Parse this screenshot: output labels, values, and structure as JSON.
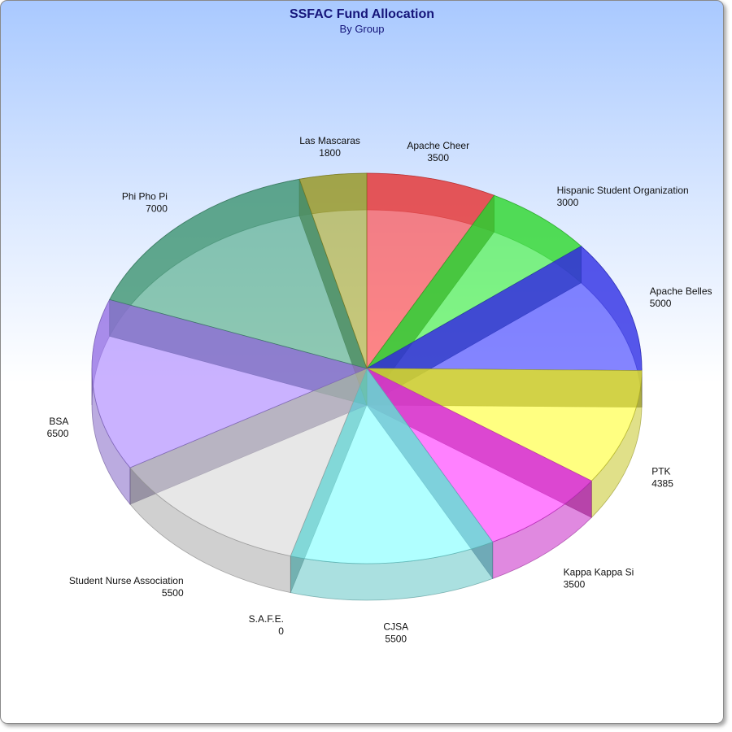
{
  "chart_data": {
    "type": "pie",
    "title": "SSFAC Fund Allocation",
    "subtitle": "By Group",
    "slices": [
      {
        "label": "Apache Cheer",
        "value": 3500,
        "value_text": "3500",
        "color": "#ff3c3c"
      },
      {
        "label": "Hispanic Student Organization",
        "value": 3000,
        "value_text": "3000",
        "color": "#39f039"
      },
      {
        "label": "Apache Belles",
        "value": 5000,
        "value_text": "5000",
        "color": "#3a3aff"
      },
      {
        "label": "PTK",
        "value": 4385,
        "value_text": "4385",
        "color": "#ffff33"
      },
      {
        "label": "Kappa Kappa Si",
        "value": 3500,
        "value_text": "3500",
        "color": "#ff33ff"
      },
      {
        "label": "CJSA",
        "value": 5500,
        "value_text": "5500",
        "color": "#80ffff"
      },
      {
        "label": "S.A.F.E.",
        "value": 0,
        "value_text": "0",
        "color": "#80c080"
      },
      {
        "label": "Student Nurse Association",
        "value": 5500,
        "value_text": "5500",
        "color": "#d9d9d9"
      },
      {
        "label": "BSA",
        "value": 6500,
        "value_text": "6500",
        "color": "#a983ff"
      },
      {
        "label": "Phi Pho Pi",
        "value": 7000,
        "value_text": "7000",
        "color": "#4aa882"
      },
      {
        "label": "Las Mascaras",
        "value": 1800,
        "value_text": "1800",
        "color": "#a8a828"
      }
    ],
    "style": "3d-transparent",
    "legend": "none"
  }
}
